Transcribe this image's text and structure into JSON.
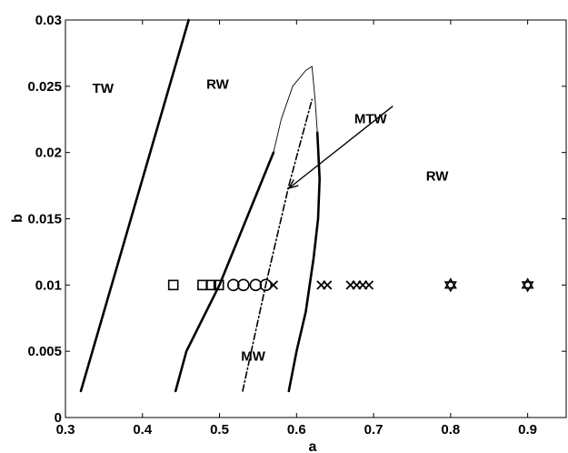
{
  "chart_data": {
    "type": "line",
    "title": "",
    "xlabel": "a",
    "ylabel": "b",
    "xlim": [
      0.3,
      0.95
    ],
    "ylim": [
      0,
      0.03
    ],
    "xticks": [
      "0.3",
      "0.4",
      "0.5",
      "0.6",
      "0.7",
      "0.8",
      "0.9"
    ],
    "yticks": [
      "0",
      "0.005",
      "0.01",
      "0.015",
      "0.02",
      "0.025",
      "0.03"
    ],
    "grid": false,
    "boundaries": [
      {
        "style": "thick",
        "x": [
          0.32,
          0.46
        ],
        "y": [
          0.002,
          0.03
        ]
      },
      {
        "style": "thick",
        "x": [
          0.443,
          0.457,
          0.5,
          0.57
        ],
        "y": [
          0.002,
          0.005,
          0.01,
          0.02
        ]
      },
      {
        "style": "thin",
        "x": [
          0.57,
          0.58,
          0.595,
          0.612,
          0.62,
          0.624,
          0.627
        ],
        "y": [
          0.02,
          0.0225,
          0.025,
          0.0262,
          0.0265,
          0.024,
          0.0215
        ]
      },
      {
        "style": "thick",
        "x": [
          0.627,
          0.63,
          0.628,
          0.622,
          0.612,
          0.6,
          0.59
        ],
        "y": [
          0.0215,
          0.018,
          0.015,
          0.012,
          0.008,
          0.005,
          0.002
        ]
      },
      {
        "style": "dashdot",
        "x": [
          0.53,
          0.56,
          0.59,
          0.62
        ],
        "y": [
          0.002,
          0.01,
          0.0175,
          0.024
        ]
      }
    ],
    "markers": [
      {
        "symbol": "square",
        "a": [
          0.44,
          0.478,
          0.489,
          0.499
        ],
        "b": [
          0.01,
          0.01,
          0.01,
          0.01
        ]
      },
      {
        "symbol": "circle",
        "a": [
          0.518,
          0.531,
          0.547,
          0.56
        ],
        "b": [
          0.01,
          0.01,
          0.01,
          0.01
        ]
      },
      {
        "symbol": "x",
        "a": [
          0.57,
          0.632,
          0.64,
          0.67,
          0.678,
          0.686,
          0.694
        ],
        "b": [
          0.01,
          0.01,
          0.01,
          0.01,
          0.01,
          0.01,
          0.01
        ]
      },
      {
        "symbol": "star",
        "a": [
          0.8,
          0.9
        ],
        "b": [
          0.01,
          0.01
        ]
      }
    ],
    "annotations": [
      {
        "text": "TW",
        "x": 0.335,
        "y": 0.0245
      },
      {
        "text": "RW",
        "x": 0.483,
        "y": 0.0248
      },
      {
        "text": "MTW",
        "x": 0.675,
        "y": 0.0222
      },
      {
        "text": "RW",
        "x": 0.768,
        "y": 0.0179
      },
      {
        "text": "MW",
        "x": 0.528,
        "y": 0.0043
      }
    ],
    "arrow": {
      "from": [
        0.725,
        0.0235
      ],
      "to": [
        0.59,
        0.0173
      ]
    }
  }
}
